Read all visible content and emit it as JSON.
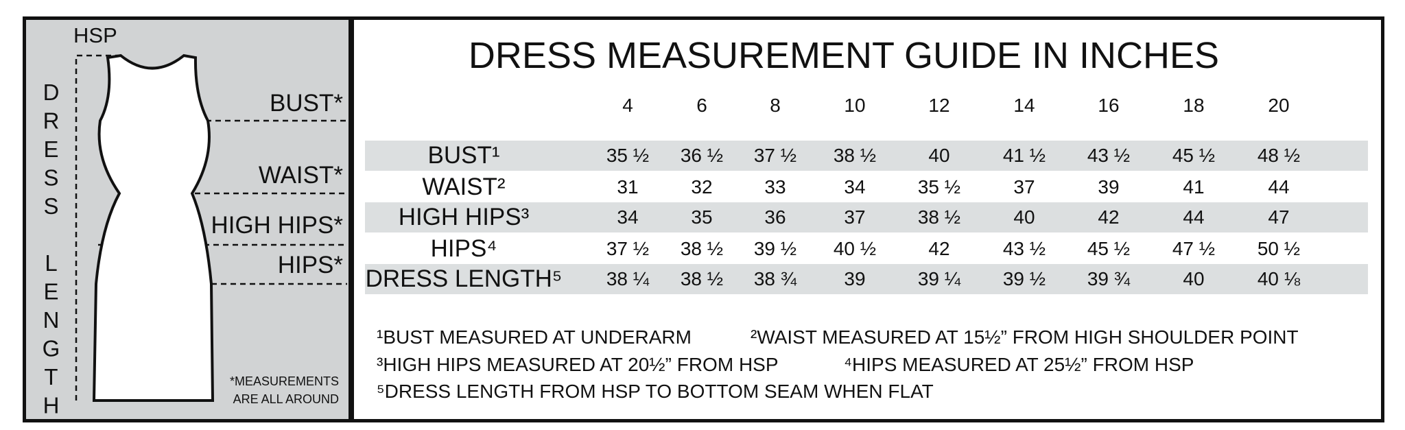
{
  "diagram": {
    "hsp": "HSP",
    "labels": [
      "BUST*",
      "WAIST*",
      "HIGH HIPS*",
      "HIPS*"
    ],
    "side_label": "DRESS LENGTH",
    "note": [
      "*MEASUREMENTS",
      "ARE ALL AROUND"
    ]
  },
  "title": "DRESS MEASUREMENT GUIDE IN INCHES",
  "table": {
    "sizes": [
      4,
      6,
      8,
      10,
      12,
      14,
      16,
      18,
      20
    ],
    "rows": [
      {
        "label": "BUST¹",
        "values": [
          "35 ½",
          "36 ½",
          "37 ½",
          "38 ½",
          40,
          "41 ½",
          "43 ½",
          "45 ½",
          "48 ½"
        ]
      },
      {
        "label": "WAIST²",
        "values": [
          31,
          32,
          33,
          34,
          "35 ½",
          37,
          39,
          41,
          44
        ]
      },
      {
        "label": "HIGH HIPS³",
        "values": [
          34,
          35,
          36,
          37,
          "38 ½",
          40,
          42,
          44,
          47
        ]
      },
      {
        "label": "HIPS⁴",
        "values": [
          "37 ½",
          "38 ½",
          "39 ½",
          "40 ½",
          42,
          "43 ½",
          "45 ½",
          "47 ½",
          "50 ½"
        ]
      },
      {
        "label": "DRESS LENGTH⁵",
        "values": [
          "38 ¼",
          "38 ½",
          "38 ¾",
          39,
          "39 ¼",
          "39 ½",
          "39 ¾",
          40,
          "40 ⅛"
        ]
      }
    ]
  },
  "footnotes": [
    "¹BUST MEASURED AT UNDERARM",
    "²WAIST MEASURED AT 15½” FROM HIGH SHOULDER POINT",
    "³HIGH HIPS MEASURED AT 20½” FROM HSP",
    "⁴HIPS MEASURED AT 25½” FROM HSP",
    "⁵DRESS LENGTH FROM HSP TO BOTTOM SEAM WHEN FLAT"
  ]
}
